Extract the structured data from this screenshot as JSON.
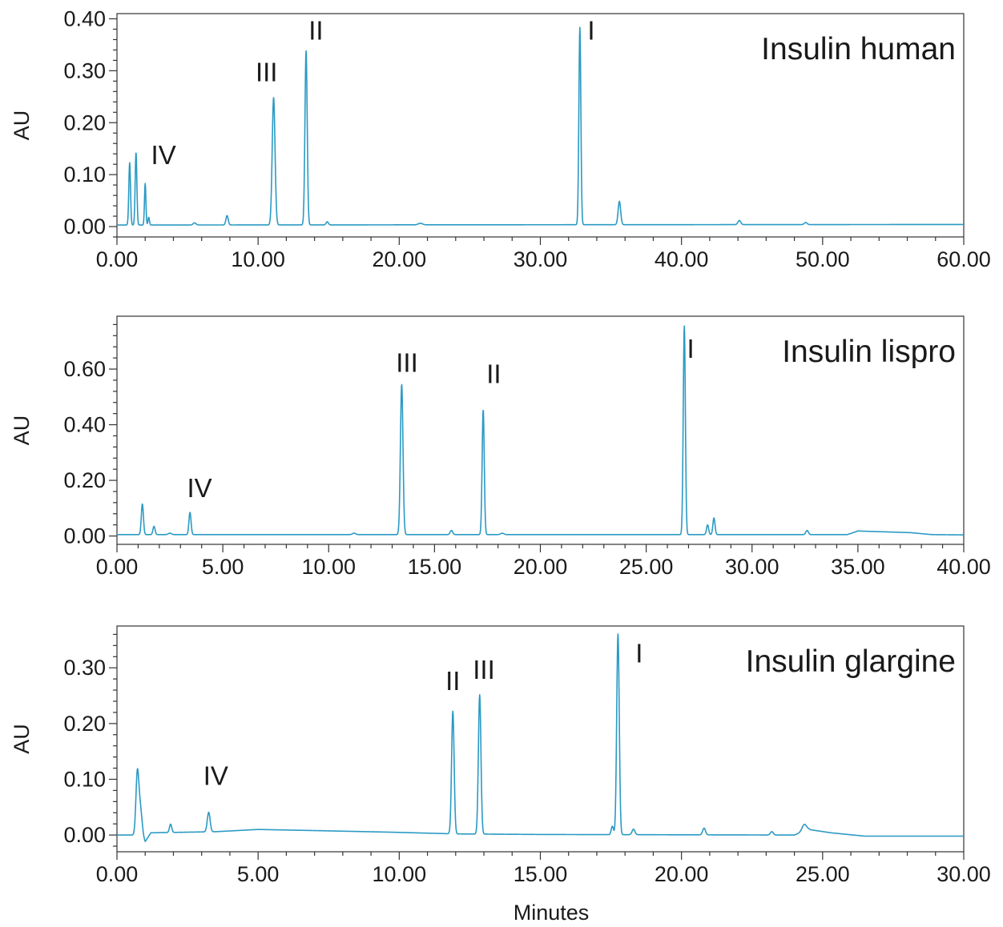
{
  "xlabel": "Minutes",
  "colors": {
    "trace": "#2b9ac4",
    "frame": "#333333"
  },
  "chart_data": [
    {
      "type": "line",
      "title": "Insulin human",
      "ylabel": "AU",
      "xlim": [
        0,
        60
      ],
      "ylim": [
        -0.02,
        0.41
      ],
      "xticks": [
        0,
        10,
        20,
        30,
        40,
        50,
        60
      ],
      "xtick_labels": [
        "0.00",
        "10.00",
        "20.00",
        "30.00",
        "40.00",
        "50.00",
        "60.00"
      ],
      "yticks": [
        0,
        0.1,
        0.2,
        0.3,
        0.4
      ],
      "ytick_labels": [
        "0.00",
        "0.10",
        "0.20",
        "0.30",
        "0.40"
      ],
      "baseline": [
        [
          0,
          0.003
        ],
        [
          60,
          0.004
        ]
      ],
      "peaks": [
        {
          "x": 0.9,
          "h": 0.12,
          "w": 0.06
        },
        {
          "x": 1.35,
          "h": 0.14,
          "w": 0.06
        },
        {
          "x": 2.0,
          "h": 0.08,
          "w": 0.05
        },
        {
          "x": 2.25,
          "h": 0.015,
          "w": 0.05
        },
        {
          "x": 5.5,
          "h": 0.004,
          "w": 0.1
        },
        {
          "x": 7.8,
          "h": 0.018,
          "w": 0.08
        },
        {
          "x": 11.1,
          "h": 0.245,
          "w": 0.1
        },
        {
          "x": 13.4,
          "h": 0.335,
          "w": 0.08
        },
        {
          "x": 14.9,
          "h": 0.006,
          "w": 0.08
        },
        {
          "x": 21.5,
          "h": 0.003,
          "w": 0.15
        },
        {
          "x": 32.8,
          "h": 0.38,
          "w": 0.07
        },
        {
          "x": 35.6,
          "h": 0.045,
          "w": 0.09
        },
        {
          "x": 44.1,
          "h": 0.008,
          "w": 0.1
        },
        {
          "x": 48.8,
          "h": 0.004,
          "w": 0.1
        }
      ],
      "peak_labels": [
        {
          "text": "IV",
          "x": 3.3,
          "y": 0.12
        },
        {
          "text": "III",
          "x": 10.6,
          "y": 0.28
        },
        {
          "text": "II",
          "x": 14.1,
          "y": 0.36
        },
        {
          "text": "I",
          "x": 33.6,
          "y": 0.36
        }
      ]
    },
    {
      "type": "line",
      "title": "Insulin lispro",
      "ylabel": "AU",
      "xlim": [
        0,
        40
      ],
      "ylim": [
        -0.03,
        0.79
      ],
      "xticks": [
        0,
        5,
        10,
        15,
        20,
        25,
        30,
        35,
        40
      ],
      "xtick_labels": [
        "0.00",
        "5.00",
        "10.00",
        "15.00",
        "20.00",
        "25.00",
        "30.00",
        "35.00",
        "40.00"
      ],
      "yticks": [
        0,
        0.2,
        0.4,
        0.6
      ],
      "ytick_labels": [
        "0.00",
        "0.20",
        "0.40",
        "0.60"
      ],
      "baseline": [
        [
          0,
          0.005
        ],
        [
          34.5,
          0.005
        ],
        [
          35,
          0.018
        ],
        [
          37.5,
          0.012
        ],
        [
          38.5,
          0.005
        ],
        [
          40,
          0.004
        ]
      ],
      "peaks": [
        {
          "x": 1.2,
          "h": 0.11,
          "w": 0.05
        },
        {
          "x": 1.75,
          "h": 0.03,
          "w": 0.05
        },
        {
          "x": 2.5,
          "h": 0.005,
          "w": 0.08
        },
        {
          "x": 3.45,
          "h": 0.08,
          "w": 0.05
        },
        {
          "x": 11.2,
          "h": 0.005,
          "w": 0.08
        },
        {
          "x": 13.45,
          "h": 0.54,
          "w": 0.06
        },
        {
          "x": 15.8,
          "h": 0.015,
          "w": 0.06
        },
        {
          "x": 17.3,
          "h": 0.45,
          "w": 0.05
        },
        {
          "x": 18.2,
          "h": 0.005,
          "w": 0.08
        },
        {
          "x": 26.8,
          "h": 0.75,
          "w": 0.05
        },
        {
          "x": 27.9,
          "h": 0.035,
          "w": 0.05
        },
        {
          "x": 28.2,
          "h": 0.06,
          "w": 0.05
        },
        {
          "x": 32.6,
          "h": 0.015,
          "w": 0.06
        }
      ],
      "peak_labels": [
        {
          "text": "IV",
          "x": 3.9,
          "y": 0.14
        },
        {
          "text": "III",
          "x": 13.7,
          "y": 0.59
        },
        {
          "text": "II",
          "x": 17.8,
          "y": 0.55
        },
        {
          "text": "I",
          "x": 27.1,
          "y": 0.64
        }
      ]
    },
    {
      "type": "line",
      "title": "Insulin glargine",
      "ylabel": "AU",
      "xlim": [
        0,
        30
      ],
      "ylim": [
        -0.03,
        0.375
      ],
      "xticks": [
        0,
        5,
        10,
        15,
        20,
        25,
        30
      ],
      "xtick_labels": [
        "0.00",
        "5.00",
        "10.00",
        "15.00",
        "20.00",
        "25.00",
        "30.00"
      ],
      "yticks": [
        0,
        0.1,
        0.2,
        0.3
      ],
      "ytick_labels": [
        "0.00",
        "0.10",
        "0.20",
        "0.30"
      ],
      "baseline": [
        [
          0,
          0.0
        ],
        [
          0.5,
          0.0
        ],
        [
          0.9,
          0.0
        ],
        [
          1.0,
          -0.012
        ],
        [
          1.2,
          0.004
        ],
        [
          3.5,
          0.006
        ],
        [
          5,
          0.01
        ],
        [
          7,
          0.008
        ],
        [
          9.8,
          0.005
        ],
        [
          12,
          0.002
        ],
        [
          15,
          0.001
        ],
        [
          24,
          0.0
        ],
        [
          24.5,
          0.01
        ],
        [
          25.3,
          0.004
        ],
        [
          26.5,
          -0.002
        ],
        [
          30,
          -0.002
        ]
      ],
      "peaks": [
        {
          "x": 0.72,
          "h": 0.105,
          "w": 0.05
        },
        {
          "x": 0.82,
          "h": 0.05,
          "w": 0.06
        },
        {
          "x": 1.9,
          "h": 0.015,
          "w": 0.04
        },
        {
          "x": 3.25,
          "h": 0.035,
          "w": 0.05
        },
        {
          "x": 11.9,
          "h": 0.22,
          "w": 0.045
        },
        {
          "x": 12.85,
          "h": 0.25,
          "w": 0.045
        },
        {
          "x": 17.55,
          "h": 0.015,
          "w": 0.04
        },
        {
          "x": 17.75,
          "h": 0.36,
          "w": 0.045
        },
        {
          "x": 18.3,
          "h": 0.01,
          "w": 0.05
        },
        {
          "x": 20.8,
          "h": 0.012,
          "w": 0.05
        },
        {
          "x": 23.2,
          "h": 0.006,
          "w": 0.05
        },
        {
          "x": 24.35,
          "h": 0.012,
          "w": 0.08
        }
      ],
      "peak_labels": [
        {
          "text": "IV",
          "x": 3.5,
          "y": 0.09
        },
        {
          "text": "II",
          "x": 11.9,
          "y": 0.26
        },
        {
          "text": "III",
          "x": 13.0,
          "y": 0.28
        },
        {
          "text": "I",
          "x": 18.5,
          "y": 0.31
        }
      ]
    }
  ]
}
